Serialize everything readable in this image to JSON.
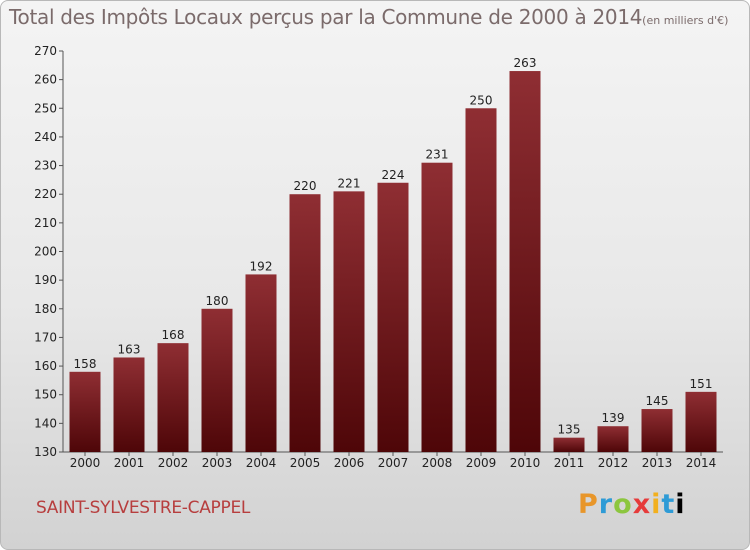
{
  "chart_data": {
    "type": "bar",
    "title": "Total des Impôts Locaux perçus par la Commune de 2000 à 2014",
    "title_unit": "(en milliers d'€)",
    "categories": [
      "2000",
      "2001",
      "2002",
      "2003",
      "2004",
      "2005",
      "2006",
      "2007",
      "2008",
      "2009",
      "2010",
      "2011",
      "2012",
      "2013",
      "2014"
    ],
    "values": [
      158,
      163,
      168,
      180,
      192,
      220,
      221,
      224,
      231,
      250,
      263,
      135,
      139,
      145,
      151
    ],
    "ylim": [
      130,
      270
    ],
    "yticks": [
      130,
      140,
      150,
      160,
      170,
      180,
      190,
      200,
      210,
      220,
      230,
      240,
      250,
      260,
      270
    ],
    "grid": false,
    "bar_color": "#7a1c22"
  },
  "commune_name": "SAINT-SYLVESTRE-CAPPEL",
  "logo": {
    "letters": [
      "P",
      "r",
      "o",
      "x",
      "i",
      "t",
      "i"
    ]
  }
}
